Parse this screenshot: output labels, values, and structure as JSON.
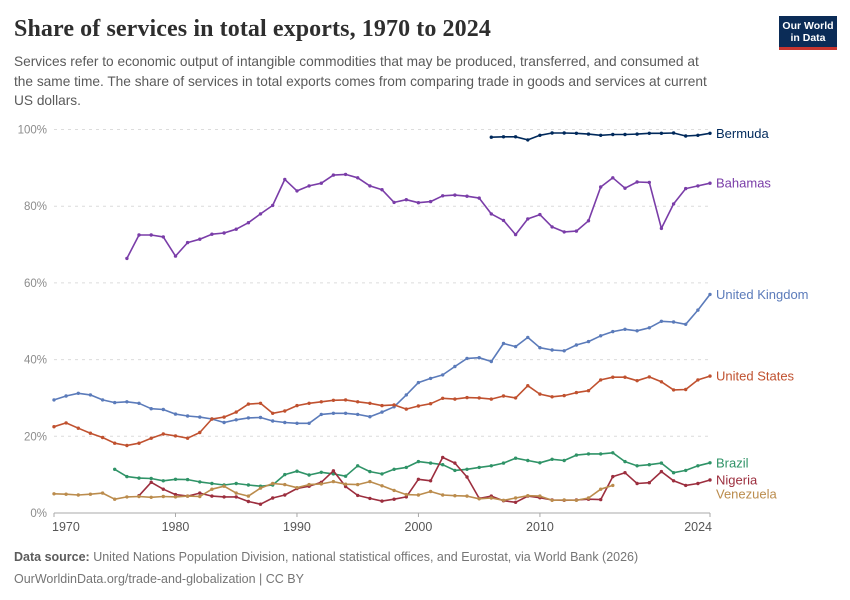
{
  "header": {
    "title": "Share of services in total exports, 1970 to 2024",
    "logo": {
      "line1": "Our World",
      "line2": "in Data"
    }
  },
  "subtitle": "Services refer to economic output of intangible commodities that may be produced, transferred, and consumed at the same time. The share of services in total exports comes from comparing trade in goods and services at current US dollars.",
  "footer": {
    "source_label": "Data source:",
    "source_text": " United Nations Population Division, national statistical offices, and Eurostat, via World Bank (2026)",
    "link_line": "OurWorldinData.org/trade-and-globalization | CC BY"
  },
  "chart_data": {
    "type": "line",
    "title": "Share of services in total exports, 1970 to 2024",
    "xlabel": "",
    "ylabel": "",
    "x_axis": {
      "min": 1970,
      "max": 2024,
      "ticks": [
        1970,
        1980,
        1990,
        2000,
        2010,
        2024
      ]
    },
    "y_axis": {
      "min": 0,
      "max": 100,
      "ticks": [
        0,
        20,
        40,
        60,
        80,
        100
      ],
      "format": "percent"
    },
    "grid": true,
    "legend_position": "right-end-of-line-labels",
    "colors": {
      "grid": "#dcdcdc",
      "axis": "#a8a8a8",
      "y_tick_label": "#8c8c8c",
      "x_tick_label": "#565656"
    },
    "series": [
      {
        "name": "Bermuda",
        "color": "#00295B",
        "start_year": 2006,
        "values": [
          98.0,
          98.1,
          98.1,
          97.3,
          98.5,
          99.1,
          99.1,
          99.0,
          98.8,
          98.5,
          98.7,
          98.7,
          98.8,
          99.0,
          99.0,
          99.1,
          98.3,
          98.5,
          99.0
        ]
      },
      {
        "name": "Bahamas",
        "color": "#7a3da8",
        "start_year": 1976,
        "values": [
          66.4,
          72.5,
          72.5,
          72.0,
          67.0,
          70.5,
          71.4,
          72.7,
          73.0,
          74.0,
          75.7,
          78.0,
          80.2,
          87.0,
          84.0,
          85.3,
          86.0,
          88.1,
          88.3,
          87.4,
          85.3,
          84.3,
          81.0,
          81.7,
          80.9,
          81.2,
          82.7,
          82.9,
          82.6,
          82.1,
          78.0,
          76.3,
          72.6,
          76.7,
          77.8,
          74.6,
          73.3,
          73.5,
          76.2,
          85.0,
          87.4,
          84.7,
          86.3,
          86.2,
          74.2,
          80.6,
          84.6,
          85.3,
          86.0
        ]
      },
      {
        "name": "United Kingdom",
        "color": "#5b7bba",
        "start_year": 1970,
        "values": [
          29.5,
          30.5,
          31.2,
          30.8,
          29.5,
          28.8,
          29.0,
          28.6,
          27.2,
          27.0,
          25.8,
          25.3,
          25.0,
          24.5,
          23.6,
          24.3,
          24.8,
          24.9,
          24.0,
          23.6,
          23.4,
          23.4,
          25.7,
          26.0,
          26.0,
          25.7,
          25.1,
          26.3,
          27.7,
          30.8,
          34.0,
          35.1,
          36.0,
          38.2,
          40.3,
          40.5,
          39.5,
          44.2,
          43.4,
          45.8,
          43.1,
          42.5,
          42.3,
          43.8,
          44.7,
          46.2,
          47.3,
          47.9,
          47.5,
          48.3,
          50.0,
          49.8,
          49.2,
          52.9,
          57.0
        ]
      },
      {
        "name": "United States",
        "color": "#c0512f",
        "start_year": 1970,
        "values": [
          22.5,
          23.5,
          22.1,
          20.8,
          19.7,
          18.2,
          17.6,
          18.2,
          19.5,
          20.6,
          20.1,
          19.5,
          21.0,
          24.5,
          25.0,
          26.3,
          28.4,
          28.6,
          26.0,
          26.6,
          28.0,
          28.6,
          29.0,
          29.4,
          29.5,
          29.0,
          28.6,
          28.0,
          28.2,
          27.1,
          27.9,
          28.5,
          29.9,
          29.7,
          30.1,
          30.0,
          29.7,
          30.5,
          30.0,
          33.2,
          31.0,
          30.3,
          30.6,
          31.4,
          31.9,
          34.7,
          35.4,
          35.4,
          34.5,
          35.5,
          34.2,
          32.1,
          32.2,
          34.7,
          35.7
        ]
      },
      {
        "name": "Brazil",
        "color": "#2f9367",
        "start_year": 1975,
        "values": [
          11.4,
          9.5,
          9.1,
          9.0,
          8.4,
          8.8,
          8.7,
          8.1,
          7.7,
          7.3,
          7.7,
          7.3,
          7.0,
          7.3,
          10.0,
          10.9,
          9.9,
          10.6,
          10.2,
          9.6,
          12.3,
          10.8,
          10.2,
          11.4,
          11.9,
          13.4,
          13.0,
          12.6,
          11.1,
          11.4,
          11.9,
          12.3,
          13.0,
          14.3,
          13.7,
          13.1,
          14.0,
          13.7,
          15.1,
          15.4,
          15.4,
          15.7,
          13.4,
          12.3,
          12.6,
          13.0,
          10.5,
          11.1,
          12.3,
          13.1
        ]
      },
      {
        "name": "Nigeria",
        "color": "#9c2e3e",
        "start_year": 1977,
        "values": [
          4.5,
          8.0,
          6.2,
          4.8,
          4.4,
          5.2,
          4.4,
          4.2,
          4.2,
          3.0,
          2.3,
          3.9,
          4.7,
          6.4,
          7.0,
          8.0,
          11.0,
          6.9,
          4.6,
          3.8,
          3.1,
          3.6,
          4.2,
          8.8,
          8.4,
          14.5,
          13.0,
          9.4,
          3.8,
          4.4,
          3.2,
          2.8,
          4.4,
          4.0,
          3.4,
          3.3,
          3.4,
          3.6,
          3.5,
          9.5,
          10.5,
          7.7,
          7.9,
          10.8,
          8.4,
          7.2,
          7.7,
          8.6
        ]
      },
      {
        "name": "Venezuela",
        "color": "#bb8c4d",
        "start_year": 1970,
        "values": [
          5.0,
          4.9,
          4.7,
          4.9,
          5.2,
          3.6,
          4.2,
          4.3,
          4.1,
          4.3,
          4.2,
          4.4,
          4.3,
          6.2,
          7.0,
          5.2,
          4.4,
          6.5,
          7.7,
          7.4,
          6.6,
          7.4,
          7.6,
          8.2,
          7.5,
          7.4,
          8.2,
          7.1,
          5.9,
          4.8,
          4.7,
          5.6,
          4.7,
          4.5,
          4.4,
          3.7,
          3.9,
          3.3,
          3.9,
          4.5,
          4.4,
          3.3,
          3.4,
          3.3,
          3.9,
          6.2,
          7.2
        ]
      }
    ]
  }
}
